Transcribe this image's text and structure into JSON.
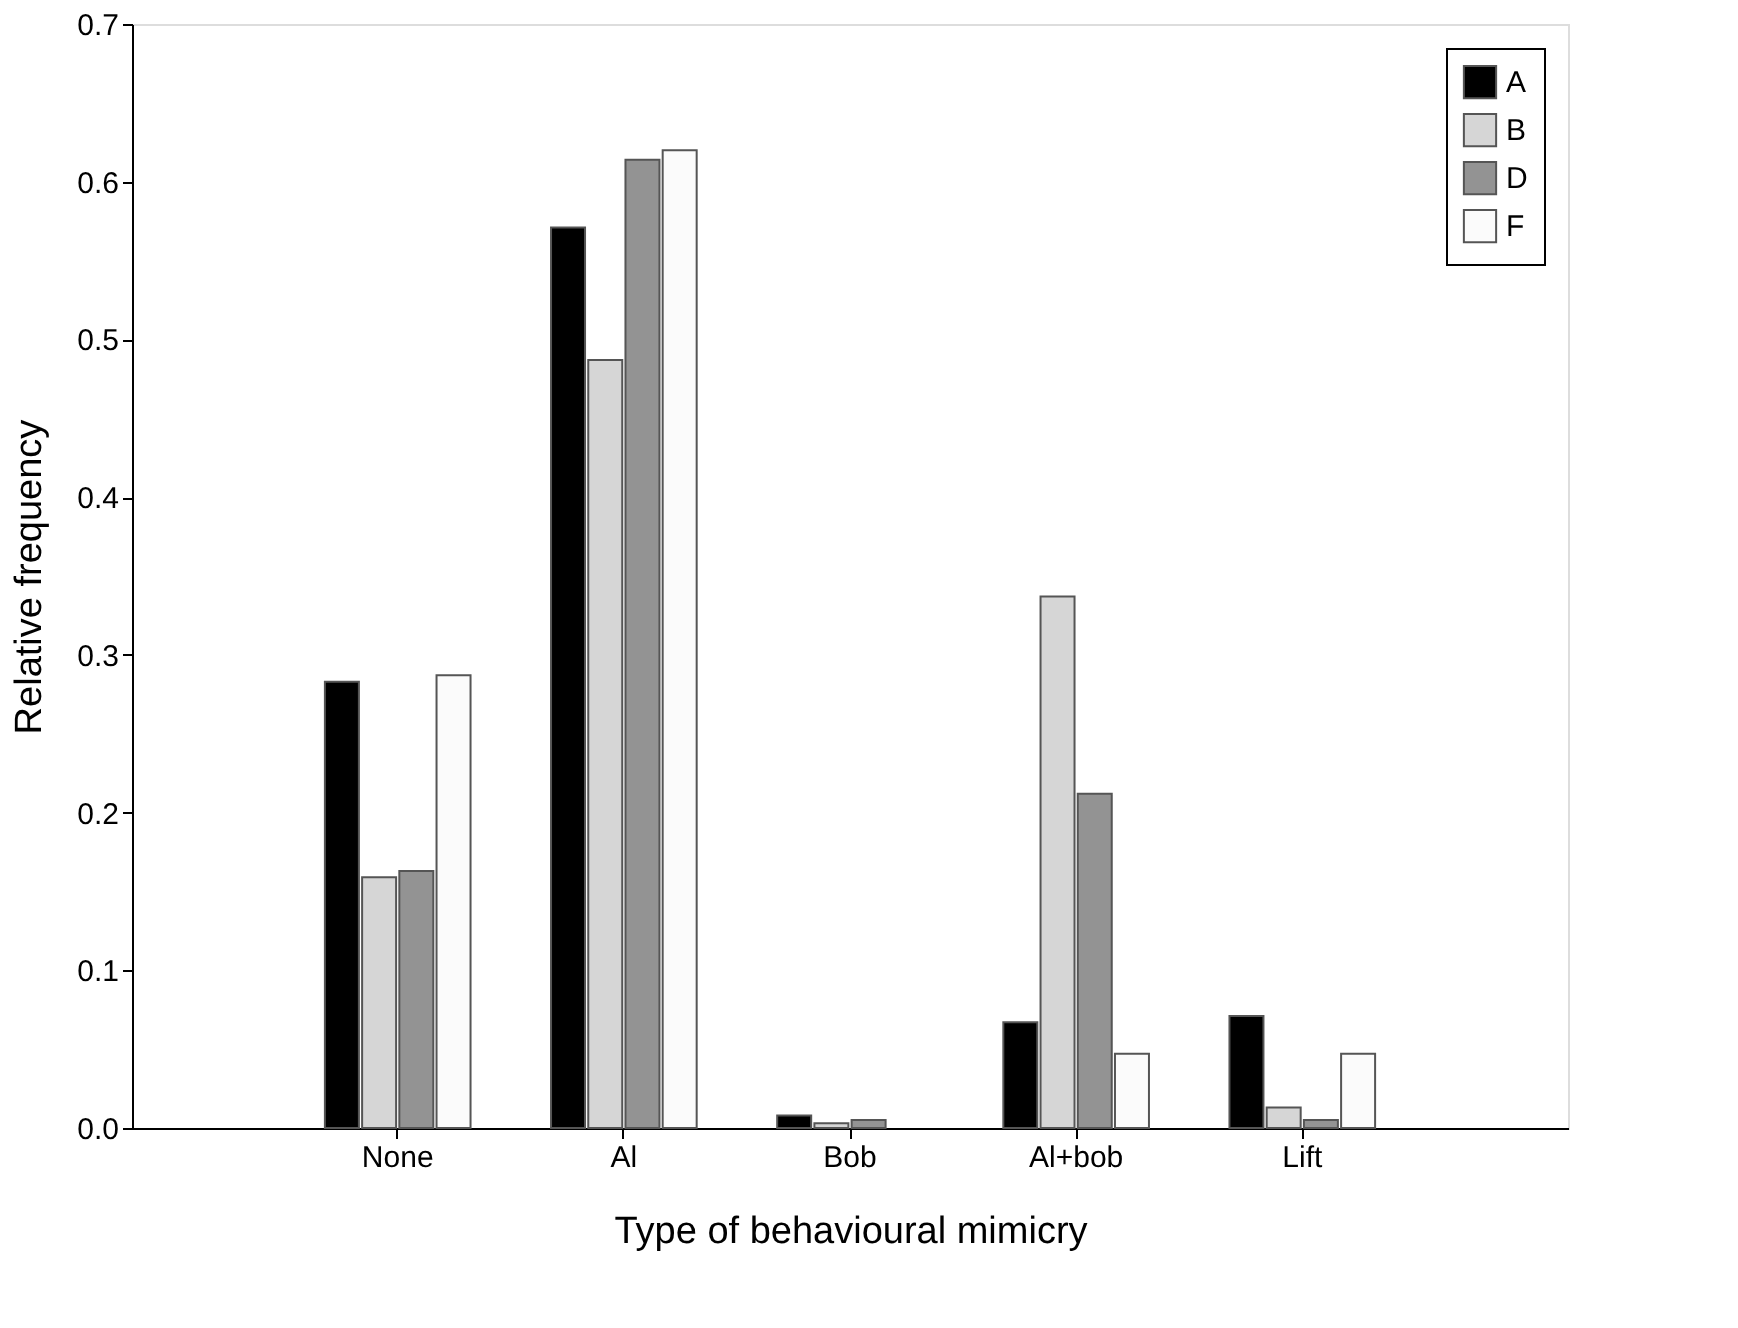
{
  "chart_data": {
    "type": "bar",
    "xlabel": "Type of behavioural mimicry",
    "ylabel": "Relative frequency",
    "categories": [
      "None",
      "Al",
      "Bob",
      "Al+bob",
      "Lift"
    ],
    "series": [
      {
        "name": "A",
        "color": "#000000",
        "values": [
          0.283,
          0.571,
          0.008,
          0.067,
          0.071
        ]
      },
      {
        "name": "B",
        "color": "#d6d6d6",
        "values": [
          0.159,
          0.487,
          0.003,
          0.337,
          0.013
        ]
      },
      {
        "name": "D",
        "color": "#939393",
        "values": [
          0.163,
          0.614,
          0.005,
          0.212,
          0.005
        ]
      },
      {
        "name": "F",
        "color": "#fbfbfb",
        "values": [
          0.287,
          0.62,
          null,
          0.047,
          0.047
        ]
      }
    ],
    "ylim": [
      0,
      0.7
    ],
    "yticks": [
      {
        "value": 0,
        "label": "0.0"
      },
      0.1,
      0.2,
      0.3,
      0.4,
      0.5,
      0.6,
      0.7
    ],
    "grid": false,
    "legend": "top right"
  }
}
